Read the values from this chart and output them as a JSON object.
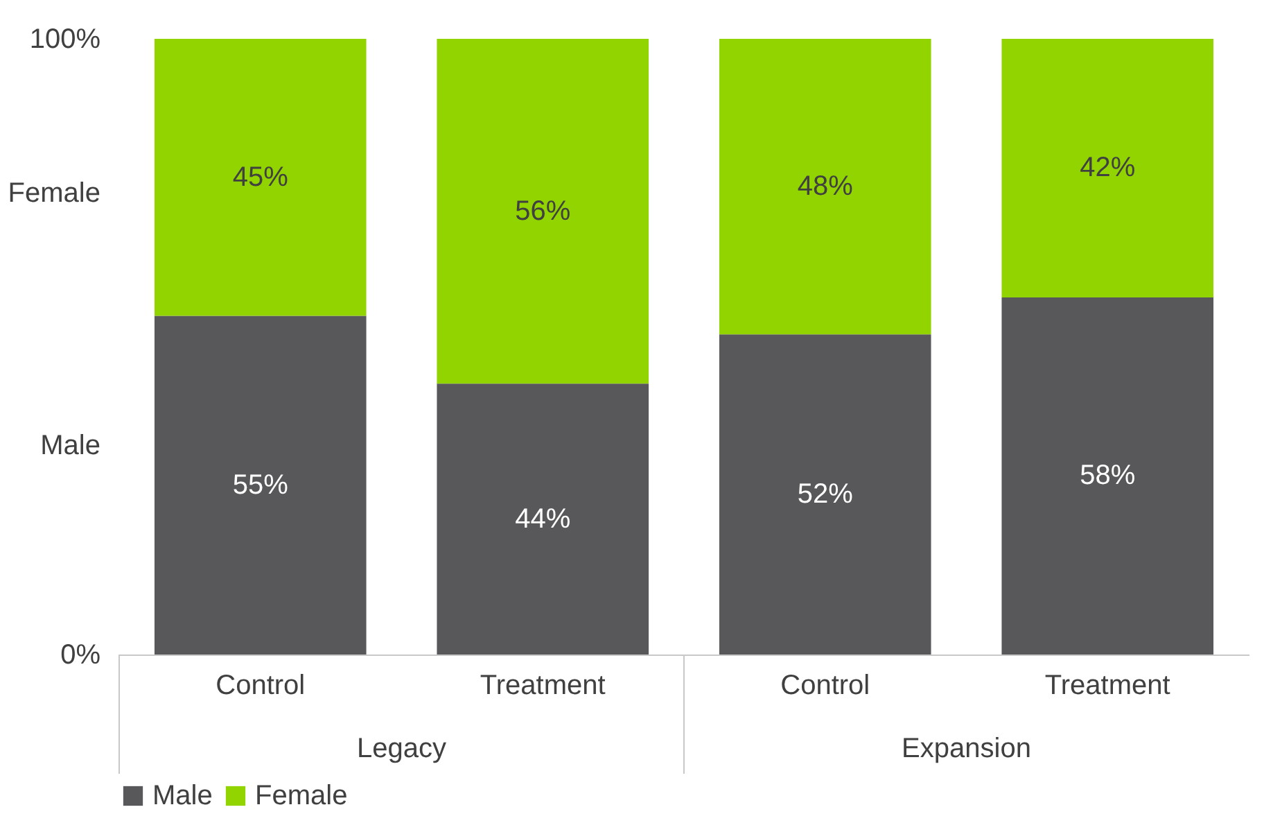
{
  "chart_data": {
    "type": "bar",
    "stacked": true,
    "categories": [
      "Control",
      "Treatment",
      "Control",
      "Treatment"
    ],
    "series": [
      {
        "name": "Male",
        "color": "#58585a",
        "values": [
          55,
          44,
          52,
          58
        ],
        "value_labels": [
          "55%",
          "44%",
          "52%",
          "58%"
        ]
      },
      {
        "name": "Female",
        "color": "#92d400",
        "values": [
          45,
          56,
          48,
          42
        ],
        "value_labels": [
          "45%",
          "56%",
          "48%",
          "42%"
        ]
      }
    ],
    "ylim": [
      0,
      100
    ],
    "yticks": [
      {
        "value": 0,
        "label": "0%"
      },
      {
        "value": 34,
        "label": "Male"
      },
      {
        "value": 75,
        "label": "Female"
      },
      {
        "value": 100,
        "label": "100%"
      }
    ],
    "annotations": [
      "Legacy",
      "Expansion"
    ],
    "grid": false,
    "legend": "bottom"
  }
}
